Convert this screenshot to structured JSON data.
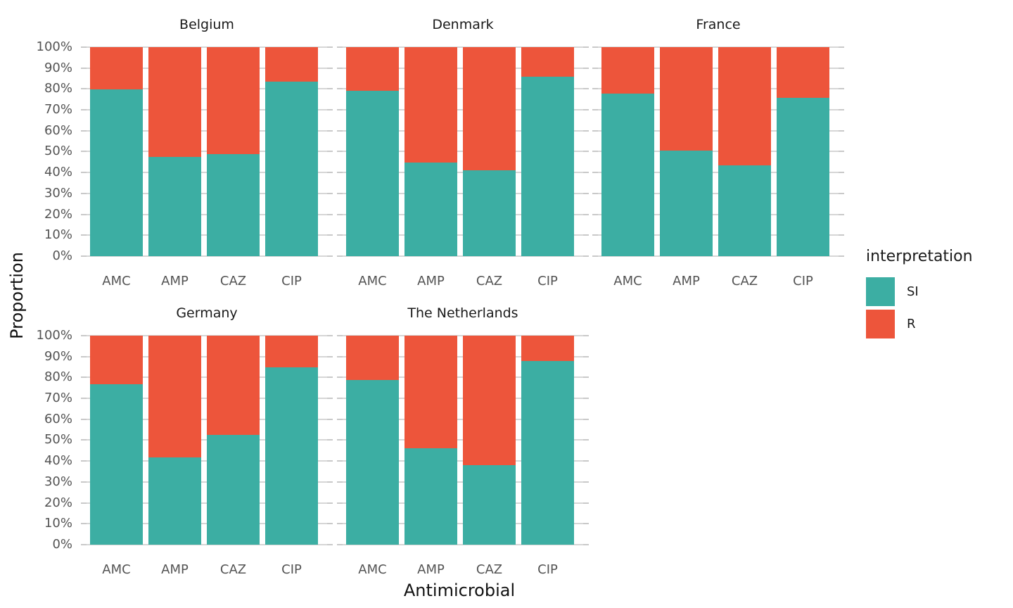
{
  "chart_data": {
    "type": "bar",
    "stacked": true,
    "unit": "percent",
    "xlabel": "Antimicrobial",
    "ylabel": "Proportion",
    "categories": [
      "AMC",
      "AMP",
      "CAZ",
      "CIP"
    ],
    "y_ticks": [
      "0%",
      "10%",
      "20%",
      "30%",
      "40%",
      "50%",
      "60%",
      "70%",
      "80%",
      "90%",
      "100%"
    ],
    "ylim": [
      0,
      100
    ],
    "grid": "horizontal-major",
    "legend": {
      "title": "interpretation",
      "position": "right",
      "items": [
        {
          "label": "SI",
          "color": "#3CAEA3"
        },
        {
          "label": "R",
          "color": "#ED553B"
        }
      ]
    },
    "colors": {
      "si": "#3CAEA3",
      "r": "#ED553B",
      "gridline": "#d6d6d6",
      "tick_mark": "#c9c9c9",
      "tick_text": "#545454"
    },
    "facets": [
      {
        "title": "Belgium",
        "series": [
          {
            "name": "SI",
            "values": [
              79.9,
              47.5,
              48.8,
              83.4
            ]
          },
          {
            "name": "R",
            "values": [
              20.1,
              52.5,
              51.2,
              16.6
            ]
          }
        ]
      },
      {
        "title": "Denmark",
        "series": [
          {
            "name": "SI",
            "values": [
              79.1,
              44.9,
              41.0,
              85.9
            ]
          },
          {
            "name": "R",
            "values": [
              20.9,
              55.1,
              59.0,
              14.1
            ]
          }
        ]
      },
      {
        "title": "France",
        "series": [
          {
            "name": "SI",
            "values": [
              77.9,
              50.5,
              43.4,
              75.6
            ]
          },
          {
            "name": "R",
            "values": [
              22.1,
              49.5,
              56.6,
              24.4
            ]
          }
        ]
      },
      {
        "title": "Germany",
        "series": [
          {
            "name": "SI",
            "values": [
              76.8,
              41.6,
              52.4,
              84.8
            ]
          },
          {
            "name": "R",
            "values": [
              23.2,
              58.4,
              47.6,
              15.2
            ]
          }
        ]
      },
      {
        "title": "The Netherlands",
        "series": [
          {
            "name": "SI",
            "values": [
              78.7,
              46.0,
              38.1,
              88.0
            ]
          },
          {
            "name": "R",
            "values": [
              21.3,
              54.0,
              61.9,
              12.0
            ]
          }
        ]
      }
    ]
  }
}
